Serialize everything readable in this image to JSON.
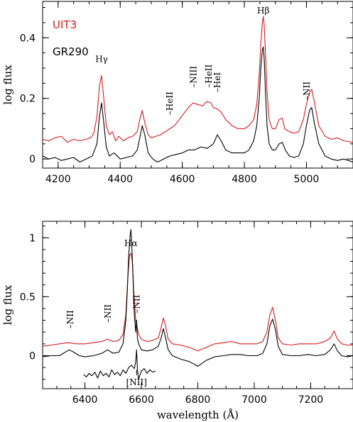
{
  "chart_data": [
    {
      "type": "line",
      "xlim": [
        4150,
        5150
      ],
      "ylim": [
        -0.03,
        0.52
      ],
      "xticks": [
        4200,
        4400,
        4600,
        4800,
        5000
      ],
      "yticks": [
        0,
        0.2,
        0.4
      ],
      "xticks_minor": 50,
      "yticks_minor": 0.05,
      "ylabel": "log flux",
      "xlabel": "",
      "legend": [
        {
          "text": "UIT3",
          "color": "#d7191c"
        },
        {
          "text": "GR290",
          "color": "#000000"
        }
      ],
      "legend_placement": "top-left",
      "annotations": [
        {
          "text": "Hγ",
          "x": 4340,
          "y": 0.32,
          "style": "plain"
        },
        {
          "text": "–HeII",
          "x": 4560,
          "y": 0.145,
          "style": "vertical"
        },
        {
          "text": "–NIII",
          "x": 4636,
          "y": 0.235,
          "style": "vertical"
        },
        {
          "text": "–HeII",
          "x": 4686,
          "y": 0.235,
          "style": "vertical"
        },
        {
          "text": "–HeI",
          "x": 4713,
          "y": 0.22,
          "style": "vertical"
        },
        {
          "text": "Hβ",
          "x": 4861,
          "y": 0.48,
          "style": "plain"
        },
        {
          "text": "–NII",
          "x": 5001,
          "y": 0.195,
          "style": "vertical"
        }
      ],
      "series": [
        {
          "name": "UIT3",
          "color": "#d7191c",
          "x": [
            4150,
            4170,
            4190,
            4210,
            4230,
            4250,
            4270,
            4290,
            4305,
            4315,
            4325,
            4333,
            4340,
            4347,
            4355,
            4365,
            4375,
            4385,
            4395,
            4410,
            4425,
            4440,
            4455,
            4463,
            4471,
            4479,
            4490,
            4500,
            4515,
            4530,
            4545,
            4560,
            4575,
            4590,
            4605,
            4620,
            4635,
            4650,
            4665,
            4680,
            4692,
            4700,
            4713,
            4725,
            4740,
            4760,
            4780,
            4800,
            4815,
            4830,
            4840,
            4848,
            4853,
            4858,
            4861,
            4864,
            4868,
            4873,
            4880,
            4890,
            4900,
            4912,
            4922,
            4930,
            4945,
            4960,
            4975,
            4990,
            5000,
            5010,
            5017,
            5025,
            5040,
            5060,
            5080,
            5100,
            5120,
            5150
          ],
          "y": [
            0.065,
            0.06,
            0.07,
            0.075,
            0.055,
            0.065,
            0.06,
            0.065,
            0.07,
            0.085,
            0.14,
            0.24,
            0.275,
            0.2,
            0.11,
            0.08,
            0.09,
            0.06,
            0.075,
            0.06,
            0.07,
            0.075,
            0.09,
            0.13,
            0.16,
            0.12,
            0.08,
            0.07,
            0.075,
            0.08,
            0.09,
            0.1,
            0.11,
            0.13,
            0.15,
            0.17,
            0.185,
            0.18,
            0.175,
            0.19,
            0.185,
            0.17,
            0.165,
            0.155,
            0.13,
            0.11,
            0.1,
            0.1,
            0.11,
            0.13,
            0.18,
            0.28,
            0.38,
            0.45,
            0.47,
            0.44,
            0.35,
            0.22,
            0.13,
            0.1,
            0.1,
            0.13,
            0.135,
            0.1,
            0.09,
            0.085,
            0.09,
            0.13,
            0.18,
            0.22,
            0.23,
            0.19,
            0.11,
            0.075,
            0.065,
            0.07,
            0.06,
            0.055
          ]
        },
        {
          "name": "GR290",
          "color": "#000000",
          "x": [
            4150,
            4170,
            4190,
            4210,
            4230,
            4250,
            4270,
            4290,
            4310,
            4325,
            4333,
            4340,
            4347,
            4355,
            4365,
            4380,
            4400,
            4420,
            4440,
            4455,
            4463,
            4471,
            4479,
            4490,
            4505,
            4520,
            4540,
            4560,
            4580,
            4600,
            4620,
            4640,
            4660,
            4680,
            4700,
            4713,
            4725,
            4740,
            4760,
            4780,
            4800,
            4815,
            4830,
            4840,
            4848,
            4853,
            4858,
            4861,
            4864,
            4868,
            4873,
            4880,
            4890,
            4900,
            4912,
            4922,
            4932,
            4945,
            4960,
            4975,
            4990,
            5000,
            5010,
            5017,
            5025,
            5040,
            5060,
            5080,
            5100,
            5120,
            5150
          ],
          "y": [
            0.01,
            0.0,
            0.005,
            -0.005,
            0.0,
            0.005,
            -0.01,
            0.0,
            0.01,
            0.05,
            0.14,
            0.185,
            0.12,
            0.04,
            0.01,
            0.02,
            0.0,
            0.005,
            0.01,
            0.03,
            0.07,
            0.11,
            0.08,
            0.02,
            0.0,
            -0.01,
            0.0,
            0.01,
            0.015,
            0.02,
            0.03,
            0.03,
            0.04,
            0.035,
            0.05,
            0.08,
            0.06,
            0.03,
            0.02,
            0.02,
            0.02,
            0.03,
            0.06,
            0.11,
            0.2,
            0.3,
            0.36,
            0.37,
            0.33,
            0.22,
            0.11,
            0.05,
            0.03,
            0.03,
            0.05,
            0.055,
            0.03,
            0.01,
            0.005,
            0.01,
            0.05,
            0.11,
            0.16,
            0.17,
            0.12,
            0.05,
            0.01,
            0.0,
            -0.005,
            0.0,
            -0.01
          ]
        }
      ]
    },
    {
      "type": "line",
      "xlim": [
        6250,
        7350
      ],
      "ylim": [
        -0.28,
        1.14
      ],
      "xticks": [
        6400,
        6600,
        6800,
        7000,
        7200
      ],
      "yticks": [
        0,
        0.5,
        1
      ],
      "xticks_minor": 50,
      "yticks_minor": 0.1,
      "ylabel": "log flux",
      "xlabel": "wavelength (Å)",
      "annotations": [
        {
          "text": "–NII",
          "x": 6348,
          "y": 0.23,
          "style": "vertical"
        },
        {
          "text": "–NII",
          "x": 6482,
          "y": 0.28,
          "style": "vertical"
        },
        {
          "text": "–NII",
          "x": 6583,
          "y": 0.36,
          "style": "vertical"
        },
        {
          "text": "Hα",
          "x": 6563,
          "y": 0.93,
          "style": "plain"
        },
        {
          "text": "[NII]",
          "x": 6583,
          "y": -0.25,
          "style": "plain"
        }
      ],
      "series": [
        {
          "name": "UIT3",
          "color": "#d7191c",
          "x": [
            6250,
            6280,
            6310,
            6340,
            6370,
            6400,
            6430,
            6460,
            6480,
            6500,
            6520,
            6535,
            6545,
            6553,
            6558,
            6563,
            6568,
            6573,
            6580,
            6590,
            6600,
            6620,
            6640,
            6660,
            6670,
            6678,
            6686,
            6695,
            6710,
            6740,
            6770,
            6800,
            6830,
            6860,
            6890,
            6920,
            6950,
            6980,
            7010,
            7030,
            7045,
            7055,
            7065,
            7075,
            7085,
            7100,
            7130,
            7160,
            7190,
            7220,
            7250,
            7270,
            7283,
            7295,
            7310,
            7330,
            7350
          ],
          "y": [
            0.08,
            0.09,
            0.1,
            0.11,
            0.1,
            0.1,
            0.11,
            0.12,
            0.14,
            0.12,
            0.13,
            0.18,
            0.35,
            0.7,
            0.85,
            0.87,
            0.8,
            0.55,
            0.3,
            0.18,
            0.14,
            0.12,
            0.13,
            0.15,
            0.24,
            0.32,
            0.25,
            0.14,
            0.1,
            0.09,
            0.07,
            0.04,
            0.07,
            0.1,
            0.11,
            0.12,
            0.1,
            0.1,
            0.1,
            0.12,
            0.2,
            0.34,
            0.41,
            0.3,
            0.15,
            0.1,
            0.09,
            0.1,
            0.1,
            0.1,
            0.12,
            0.15,
            0.21,
            0.14,
            0.1,
            0.09,
            0.09
          ]
        },
        {
          "name": "GR290",
          "color": "#000000",
          "x": [
            6250,
            6280,
            6310,
            6330,
            6345,
            6360,
            6380,
            6400,
            6430,
            6460,
            6480,
            6500,
            6520,
            6535,
            6545,
            6550,
            6555,
            6560,
            6563,
            6566,
            6570,
            6575,
            6580,
            6583,
            6586,
            6590,
            6600,
            6620,
            6640,
            6660,
            6670,
            6678,
            6686,
            6695,
            6710,
            6740,
            6770,
            6800,
            6830,
            6860,
            6890,
            6920,
            6950,
            6980,
            7010,
            7030,
            7045,
            7055,
            7065,
            7075,
            7085,
            7100,
            7130,
            7160,
            7190,
            7220,
            7250,
            7270,
            7283,
            7295,
            7310,
            7330,
            7350
          ],
          "y": [
            -0.01,
            0.0,
            0.0,
            0.03,
            0.05,
            0.03,
            0.0,
            -0.01,
            0.0,
            0.02,
            0.05,
            0.02,
            0.03,
            0.1,
            0.3,
            0.55,
            0.85,
            1.02,
            1.07,
            0.95,
            0.7,
            0.35,
            0.2,
            0.3,
            0.15,
            0.1,
            0.05,
            0.04,
            0.05,
            0.08,
            0.15,
            0.23,
            0.15,
            0.05,
            0.0,
            -0.03,
            -0.05,
            -0.09,
            -0.04,
            -0.01,
            0.0,
            0.01,
            0.01,
            0.0,
            0.0,
            0.02,
            0.1,
            0.25,
            0.31,
            0.22,
            0.08,
            0.01,
            0.0,
            0.0,
            0.01,
            0.0,
            0.01,
            0.05,
            0.1,
            0.04,
            0.0,
            -0.01,
            0.0
          ]
        },
        {
          "name": "[NII]",
          "color": "#000000",
          "x": [
            6395,
            6405,
            6415,
            6425,
            6435,
            6445,
            6455,
            6465,
            6475,
            6485,
            6495,
            6505,
            6515,
            6525,
            6535,
            6545,
            6555,
            6565,
            6575,
            6580,
            6583,
            6586,
            6590,
            6600,
            6610,
            6620,
            6630,
            6640,
            6650
          ],
          "y": [
            -0.16,
            -0.18,
            -0.15,
            -0.17,
            -0.14,
            -0.19,
            -0.13,
            -0.17,
            -0.15,
            -0.18,
            -0.12,
            -0.16,
            -0.14,
            -0.17,
            -0.12,
            -0.15,
            -0.1,
            -0.08,
            -0.11,
            -0.05,
            0.05,
            -0.12,
            -0.2,
            -0.13,
            -0.11,
            -0.15,
            -0.12,
            -0.14,
            -0.13
          ]
        }
      ]
    }
  ]
}
